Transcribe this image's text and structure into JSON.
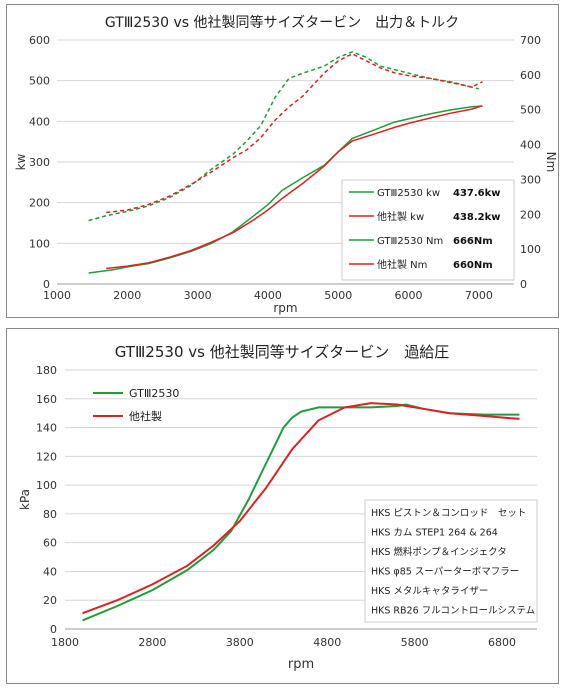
{
  "chart_data": [
    {
      "type": "line",
      "title": "GTⅢ2530 vs 他社製同等サイズタービン　出力＆トルク",
      "xlabel": "rpm",
      "ylabel": "kw",
      "y2label": "Nm",
      "xlim": [
        1000,
        7500
      ],
      "ylim": [
        0,
        600
      ],
      "y2lim": [
        0,
        700
      ],
      "xticks": [
        "1000",
        "2000",
        "3000",
        "4000",
        "5000",
        "6000",
        "7000"
      ],
      "yticks": [
        "0",
        "100",
        "200",
        "300",
        "400",
        "500",
        "600"
      ],
      "y2ticks": [
        "0",
        "100",
        "200",
        "300",
        "400",
        "500",
        "600",
        "700"
      ],
      "grid": "horizontal",
      "legend_position": "bottom-right",
      "colors": {
        "green": "#1e9e3a",
        "red": "#e02020"
      },
      "series": [
        {
          "name": "GTⅢ2530 kw",
          "value_label": "437.6kw",
          "axis": "left",
          "style": "solid",
          "color": "#1e9e3a",
          "x": [
            1450,
            1800,
            2000,
            2300,
            2600,
            2900,
            3200,
            3500,
            3800,
            4000,
            4200,
            4500,
            4800,
            5000,
            5200,
            5500,
            5800,
            6000,
            6300,
            6600,
            6900,
            7050
          ],
          "y": [
            27,
            35,
            42,
            50,
            64,
            80,
            100,
            128,
            168,
            195,
            230,
            262,
            292,
            325,
            358,
            378,
            398,
            406,
            418,
            428,
            436,
            437.6
          ]
        },
        {
          "name": "他社製 kw",
          "value_label": "438.2kw",
          "axis": "left",
          "style": "solid",
          "color": "#e02020",
          "x": [
            1700,
            2000,
            2300,
            2600,
            2900,
            3200,
            3500,
            3800,
            4000,
            4200,
            4500,
            4800,
            5000,
            5200,
            5500,
            5800,
            6000,
            6300,
            6600,
            6900,
            7050
          ],
          "y": [
            38,
            44,
            52,
            66,
            82,
            103,
            126,
            158,
            182,
            210,
            248,
            290,
            325,
            352,
            368,
            385,
            395,
            408,
            420,
            430,
            438.2
          ]
        },
        {
          "name": "GTⅢ2530 Nm",
          "value_label": "666Nm",
          "axis": "right",
          "style": "dashed",
          "color": "#1e9e3a",
          "x": [
            1450,
            1700,
            2000,
            2300,
            2600,
            2900,
            3200,
            3500,
            3700,
            3900,
            4100,
            4300,
            4500,
            4800,
            5000,
            5200,
            5400,
            5600,
            5800,
            6000,
            6300,
            6600,
            6900,
            7000
          ],
          "y": [
            182,
            196,
            208,
            224,
            248,
            282,
            330,
            372,
            410,
            455,
            535,
            590,
            605,
            625,
            650,
            666,
            650,
            625,
            615,
            605,
            590,
            580,
            565,
            560
          ]
        },
        {
          "name": "他社製 Nm",
          "value_label": "660Nm",
          "axis": "right",
          "style": "dashed",
          "color": "#e02020",
          "x": [
            1700,
            2000,
            2300,
            2600,
            2900,
            3200,
            3500,
            3700,
            3900,
            4100,
            4300,
            4500,
            4800,
            5000,
            5200,
            5400,
            5600,
            5800,
            6000,
            6300,
            6600,
            6900,
            7050
          ],
          "y": [
            205,
            212,
            228,
            252,
            285,
            322,
            362,
            385,
            420,
            470,
            508,
            540,
            605,
            640,
            660,
            640,
            620,
            606,
            598,
            590,
            578,
            565,
            580
          ]
        }
      ]
    },
    {
      "type": "line",
      "title": "GTⅢ2530 vs 他社製同等サイズタービン　過給圧",
      "xlabel": "rpm",
      "ylabel": "kPa",
      "xlim": [
        1800,
        7200
      ],
      "ylim": [
        0,
        180
      ],
      "xticks": [
        "1800",
        "2800",
        "3800",
        "4800",
        "5800",
        "6800"
      ],
      "yticks": [
        "0",
        "20",
        "40",
        "60",
        "80",
        "100",
        "120",
        "140",
        "160",
        "180"
      ],
      "grid": "horizontal",
      "legend_position": "top-left",
      "annotations": [
        "HKS ピストン＆コンロッド　セット",
        "HKS カム STEP1 264 & 264",
        "HKS 燃料ポンプ＆インジェクタ",
        "HKS φ85 スーパーターボマフラー",
        "HKS メタルキャタライザー",
        "HKS RB26 フルコントロールシステム"
      ],
      "series": [
        {
          "name": "GTⅢ2530",
          "color": "#1e9e3a",
          "x": [
            2000,
            2400,
            2800,
            3200,
            3500,
            3700,
            3900,
            4100,
            4300,
            4400,
            4500,
            4700,
            5000,
            5300,
            5600,
            5700,
            5900,
            6200,
            6600,
            6900,
            7000
          ],
          "y": [
            6,
            16,
            27,
            41,
            55,
            68,
            90,
            115,
            140,
            147,
            151,
            154,
            154,
            154,
            155,
            156,
            153,
            150,
            149,
            149,
            149
          ]
        },
        {
          "name": "他社製",
          "color": "#e02020",
          "x": [
            2000,
            2400,
            2800,
            3200,
            3500,
            3800,
            4100,
            4400,
            4700,
            5000,
            5300,
            5600,
            5900,
            6200,
            6600,
            6800,
            7000
          ],
          "y": [
            11,
            20,
            31,
            44,
            58,
            75,
            98,
            125,
            145,
            154,
            157,
            156,
            153,
            150,
            148,
            147,
            146
          ]
        }
      ]
    }
  ]
}
